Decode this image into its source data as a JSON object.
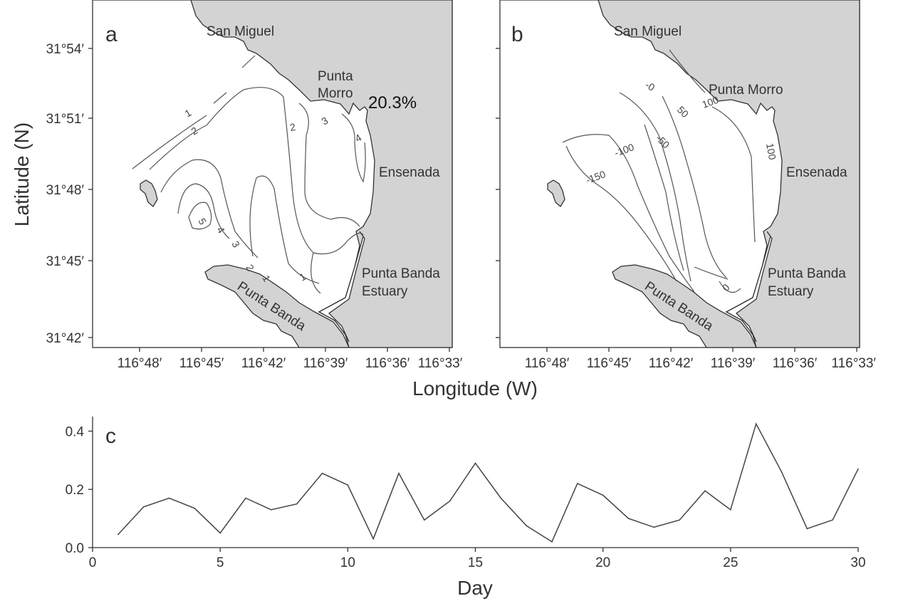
{
  "map_a": {
    "panel_label": "a",
    "percent_label": "20.3%",
    "places": {
      "san_miguel": "San Miguel",
      "punta": "Punta",
      "morro": "Morro",
      "ensenada": "Ensenada",
      "estuary_line1": "Punta Banda",
      "estuary_line2": "Estuary",
      "punta_banda": "Punta Banda"
    },
    "contour_labels": [
      "1",
      "2",
      "2",
      "3",
      "4",
      "5",
      "4",
      "3",
      "2",
      "1",
      "1"
    ]
  },
  "map_b": {
    "panel_label": "b",
    "places": {
      "san_miguel": "San Miguel",
      "punta_morro": "Punta Morro",
      "ensenada": "Ensenada",
      "estuary_line1": "Punta Banda",
      "estuary_line2": "Estuary",
      "punta_banda": "Punta Banda"
    },
    "contour_labels": [
      "-0",
      "50",
      "100",
      "100",
      "-50",
      "-100",
      "-150",
      "0"
    ]
  },
  "map_axes": {
    "ylabel": "Latitude (N)",
    "xlabel": "Longitude (W)",
    "lat_ticks": [
      "31°54′",
      "31°51′",
      "31°48′",
      "31°45′",
      "31°42′"
    ],
    "lon_ticks": [
      "116°48′",
      "116°45′",
      "116°42′",
      "116°39′",
      "116°36′",
      "116°33′"
    ]
  },
  "chart_data": {
    "type": "line",
    "panel_label": "c",
    "xlabel": "Day",
    "ylabel": "",
    "title": "",
    "xlim": [
      0,
      30
    ],
    "ylim": [
      0,
      0.45
    ],
    "xticks": [
      0,
      5,
      10,
      15,
      20,
      25,
      30
    ],
    "yticks": [
      "0.0",
      "0.2",
      "0.4"
    ],
    "x": [
      1,
      2,
      3,
      4,
      5,
      6,
      7,
      8,
      9,
      10,
      11,
      12,
      13,
      14,
      15,
      16,
      17,
      18,
      19,
      20,
      21,
      22,
      23,
      24,
      25,
      26,
      27,
      28,
      29,
      30
    ],
    "values": [
      0.045,
      0.14,
      0.17,
      0.135,
      0.05,
      0.17,
      0.13,
      0.15,
      0.255,
      0.215,
      0.03,
      0.255,
      0.095,
      0.16,
      0.29,
      0.17,
      0.075,
      0.02,
      0.22,
      0.18,
      0.1,
      0.07,
      0.095,
      0.195,
      0.13,
      0.425,
      0.26,
      0.065,
      0.095,
      0.27
    ],
    "line_color": "#444444"
  }
}
